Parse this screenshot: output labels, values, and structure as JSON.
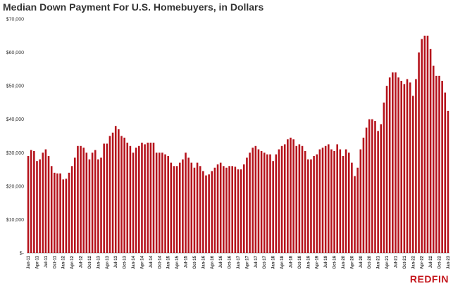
{
  "chart_data": {
    "type": "bar",
    "title": "Median Down Payment For U.S. Homebuyers, in Dollars",
    "xlabel": "",
    "ylabel": "",
    "ylim": [
      0,
      70000
    ],
    "grid": false,
    "legend": "none",
    "bar_color": "#b5121b",
    "y_ticks": [
      0,
      10000,
      20000,
      30000,
      40000,
      50000,
      60000,
      70000
    ],
    "y_tick_labels": [
      "$-",
      "$10,000",
      "$20,000",
      "$30,000",
      "$40,000",
      "$50,000",
      "$60,000",
      "$70,000"
    ],
    "x_tick_labels": [
      "Jan-11",
      "Apr-11",
      "Jul-11",
      "Oct-11",
      "Jan-12",
      "Apr-12",
      "Jul-12",
      "Oct-12",
      "Jan-13",
      "Apr-13",
      "Jul-13",
      "Oct-13",
      "Jan-14",
      "Apr-14",
      "Jul-14",
      "Oct-14",
      "Jan-15",
      "Apr-15",
      "Jul-15",
      "Oct-15",
      "Jan-16",
      "Apr-16",
      "Jul-16",
      "Oct-16",
      "Jan-17",
      "Apr-17",
      "Jul-17",
      "Oct-17",
      "Jan-18",
      "Apr-18",
      "Jul-18",
      "Oct-18",
      "Jan-19",
      "Apr-19",
      "Jul-19",
      "Oct-19",
      "Jan-20",
      "Apr-20",
      "Jul-20",
      "Oct-20",
      "Jan-21",
      "Apr-21",
      "Jul-21",
      "Oct-21",
      "Jan-22",
      "Apr-22",
      "Jul-22",
      "Oct-22",
      "Jan-23"
    ],
    "tick_every": 3,
    "values": [
      29000,
      30800,
      30500,
      27500,
      28000,
      30000,
      31000,
      29000,
      26000,
      24000,
      23800,
      23800,
      22000,
      22200,
      24000,
      26000,
      28500,
      32000,
      32000,
      31500,
      30000,
      28000,
      30000,
      30800,
      28000,
      28500,
      32700,
      32700,
      35000,
      36000,
      38000,
      37000,
      35000,
      34500,
      33000,
      32000,
      30000,
      31500,
      32000,
      33000,
      32500,
      33000,
      33000,
      33000,
      30000,
      30000,
      30000,
      29500,
      29000,
      27000,
      26000,
      26000,
      27000,
      28000,
      30000,
      28500,
      27000,
      25500,
      27000,
      26000,
      24500,
      23200,
      23500,
      24500,
      25500,
      26500,
      27000,
      26000,
      25500,
      26000,
      26000,
      25800,
      25000,
      25000,
      26500,
      28500,
      30000,
      31500,
      32000,
      31000,
      30500,
      30000,
      29500,
      29500,
      27500,
      29500,
      31000,
      32000,
      32500,
      34000,
      34500,
      34000,
      32000,
      32500,
      32000,
      30500,
      28000,
      28000,
      29000,
      29500,
      31000,
      31500,
      32000,
      32500,
      31000,
      30500,
      32500,
      31000,
      29000,
      31000,
      30000,
      27000,
      23000,
      25500,
      31000,
      34500,
      37500,
      40000,
      40000,
      39500,
      36500,
      38500,
      45000,
      50000,
      52500,
      54000,
      54000,
      52500,
      51500,
      50500,
      52000,
      51000,
      47000,
      52000,
      60000,
      64000,
      65000,
      65000,
      61000,
      56000,
      53000,
      53000,
      51500,
      48000,
      42500
    ]
  },
  "brand": {
    "logo_text": "REDFIN"
  }
}
